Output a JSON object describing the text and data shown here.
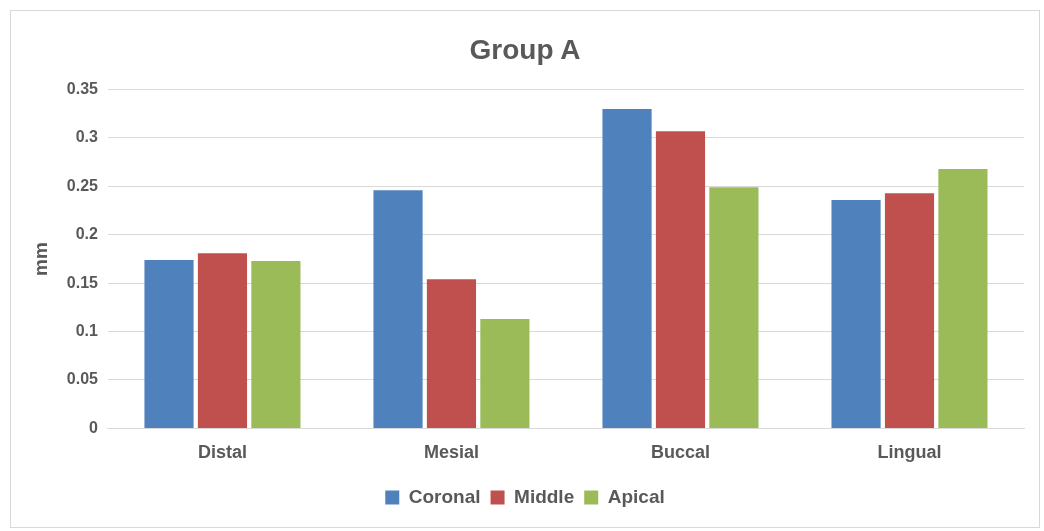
{
  "chart_data": {
    "type": "bar",
    "title": "Group A",
    "ylabel": "mm",
    "categories": [
      "Distal",
      "Mesial",
      "Buccal",
      "Lingual"
    ],
    "series": [
      {
        "name": "Coronal",
        "color": "#4f81bd",
        "values": [
          0.174,
          0.246,
          0.33,
          0.236
        ]
      },
      {
        "name": "Middle",
        "color": "#c0504d",
        "values": [
          0.181,
          0.154,
          0.307,
          0.243
        ]
      },
      {
        "name": "Apical",
        "color": "#9bbb59",
        "values": [
          0.173,
          0.113,
          0.249,
          0.268
        ]
      }
    ],
    "ylim": [
      0,
      0.35
    ],
    "yticks": [
      0,
      0.05,
      0.1,
      0.15,
      0.2,
      0.25,
      0.3,
      0.35
    ],
    "grid": "y",
    "legend": "bottom"
  }
}
